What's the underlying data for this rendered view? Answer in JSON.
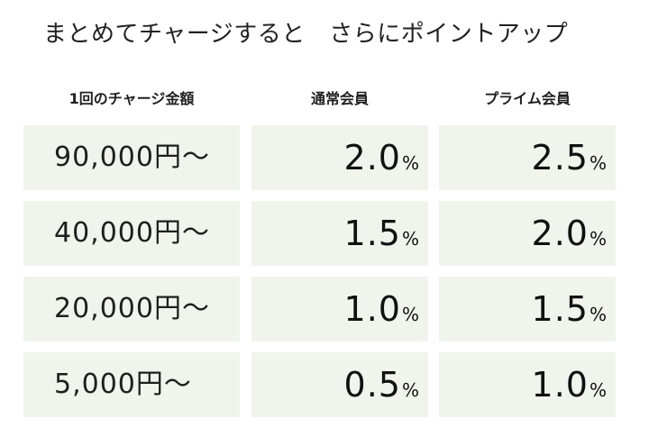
{
  "title": "まとめてチャージすると　さらにポイントアップ",
  "headers": {
    "amount": "1回のチャージ金額",
    "regular": "通常会員",
    "prime": "プライム会員"
  },
  "percent_sign": "%",
  "rows": [
    {
      "amount": "90,000円～",
      "regular": "2.0",
      "prime": "2.5"
    },
    {
      "amount": "40,000円～",
      "regular": "1.5",
      "prime": "2.0"
    },
    {
      "amount": "20,000円～",
      "regular": "1.0",
      "prime": "1.5"
    },
    {
      "amount": "5,000円～",
      "regular": "0.5",
      "prime": "1.0"
    }
  ],
  "colors": {
    "cell_background": "#f1f4ec",
    "text": "#1f1f1f"
  }
}
